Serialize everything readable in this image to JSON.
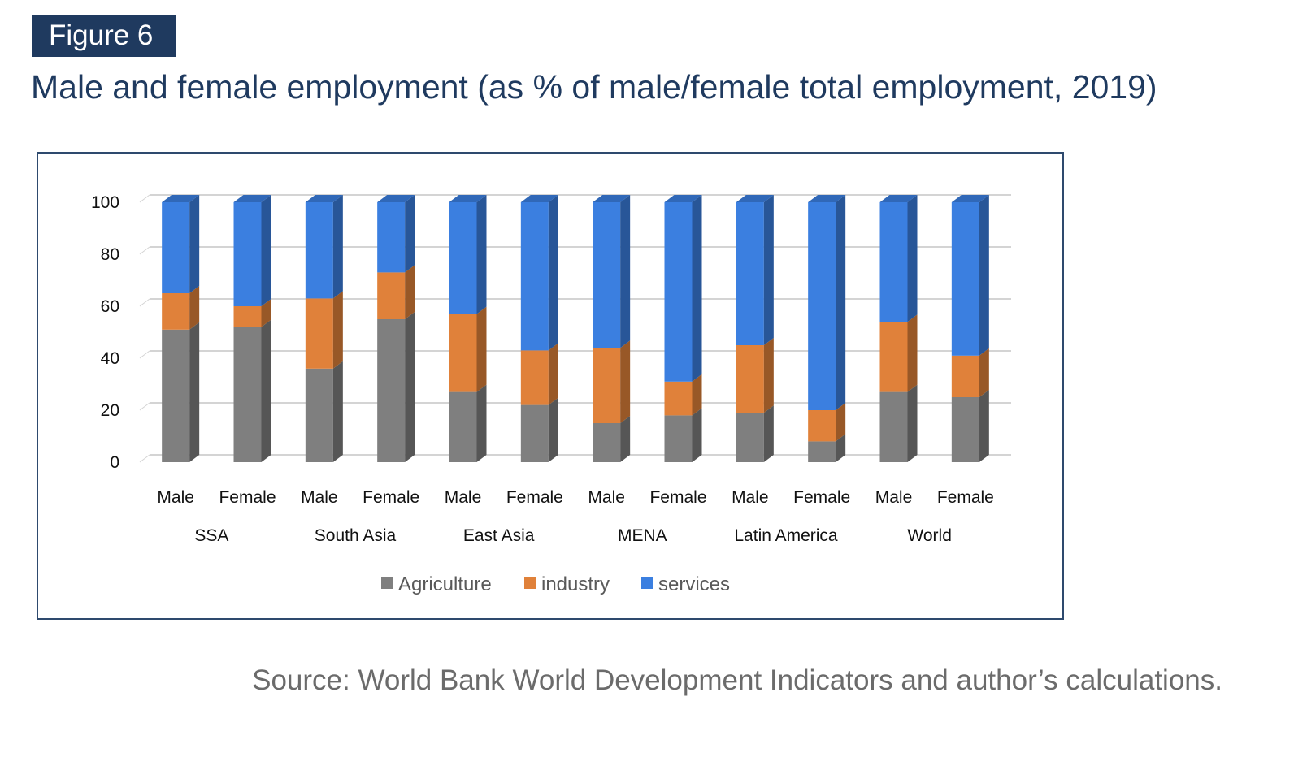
{
  "figure": {
    "label": "Figure 6",
    "title": "Male and female employment (as % of male/female total employment, 2019)",
    "source": "Source: World Bank World Development Indicators and author’s calculations."
  },
  "chart_data": {
    "type": "bar",
    "stacked": true,
    "style": "3d-stacked-column",
    "categories": [
      "Male",
      "Female",
      "Male",
      "Female",
      "Male",
      "Female",
      "Male",
      "Female",
      "Male",
      "Female",
      "Male",
      "Female"
    ],
    "groups": [
      "SSA",
      "South Asia",
      "East Asia",
      "MENA",
      "Latin America",
      "World"
    ],
    "series": [
      {
        "name": "Agriculture",
        "color": "#7f7f7f",
        "values": [
          51,
          52,
          36,
          55,
          27,
          22,
          15,
          18,
          19,
          8,
          27,
          25
        ]
      },
      {
        "name": "industry",
        "color": "#e0813a",
        "values": [
          14,
          8,
          27,
          18,
          30,
          21,
          29,
          13,
          26,
          12,
          27,
          16
        ]
      },
      {
        "name": "services",
        "color": "#3b7fe0",
        "values": [
          35,
          40,
          37,
          27,
          43,
          57,
          56,
          69,
          55,
          80,
          46,
          59
        ]
      }
    ],
    "ylim": [
      0,
      100
    ],
    "yticks": [
      0,
      20,
      40,
      60,
      80,
      100
    ],
    "grid": true,
    "legend_position": "bottom"
  }
}
